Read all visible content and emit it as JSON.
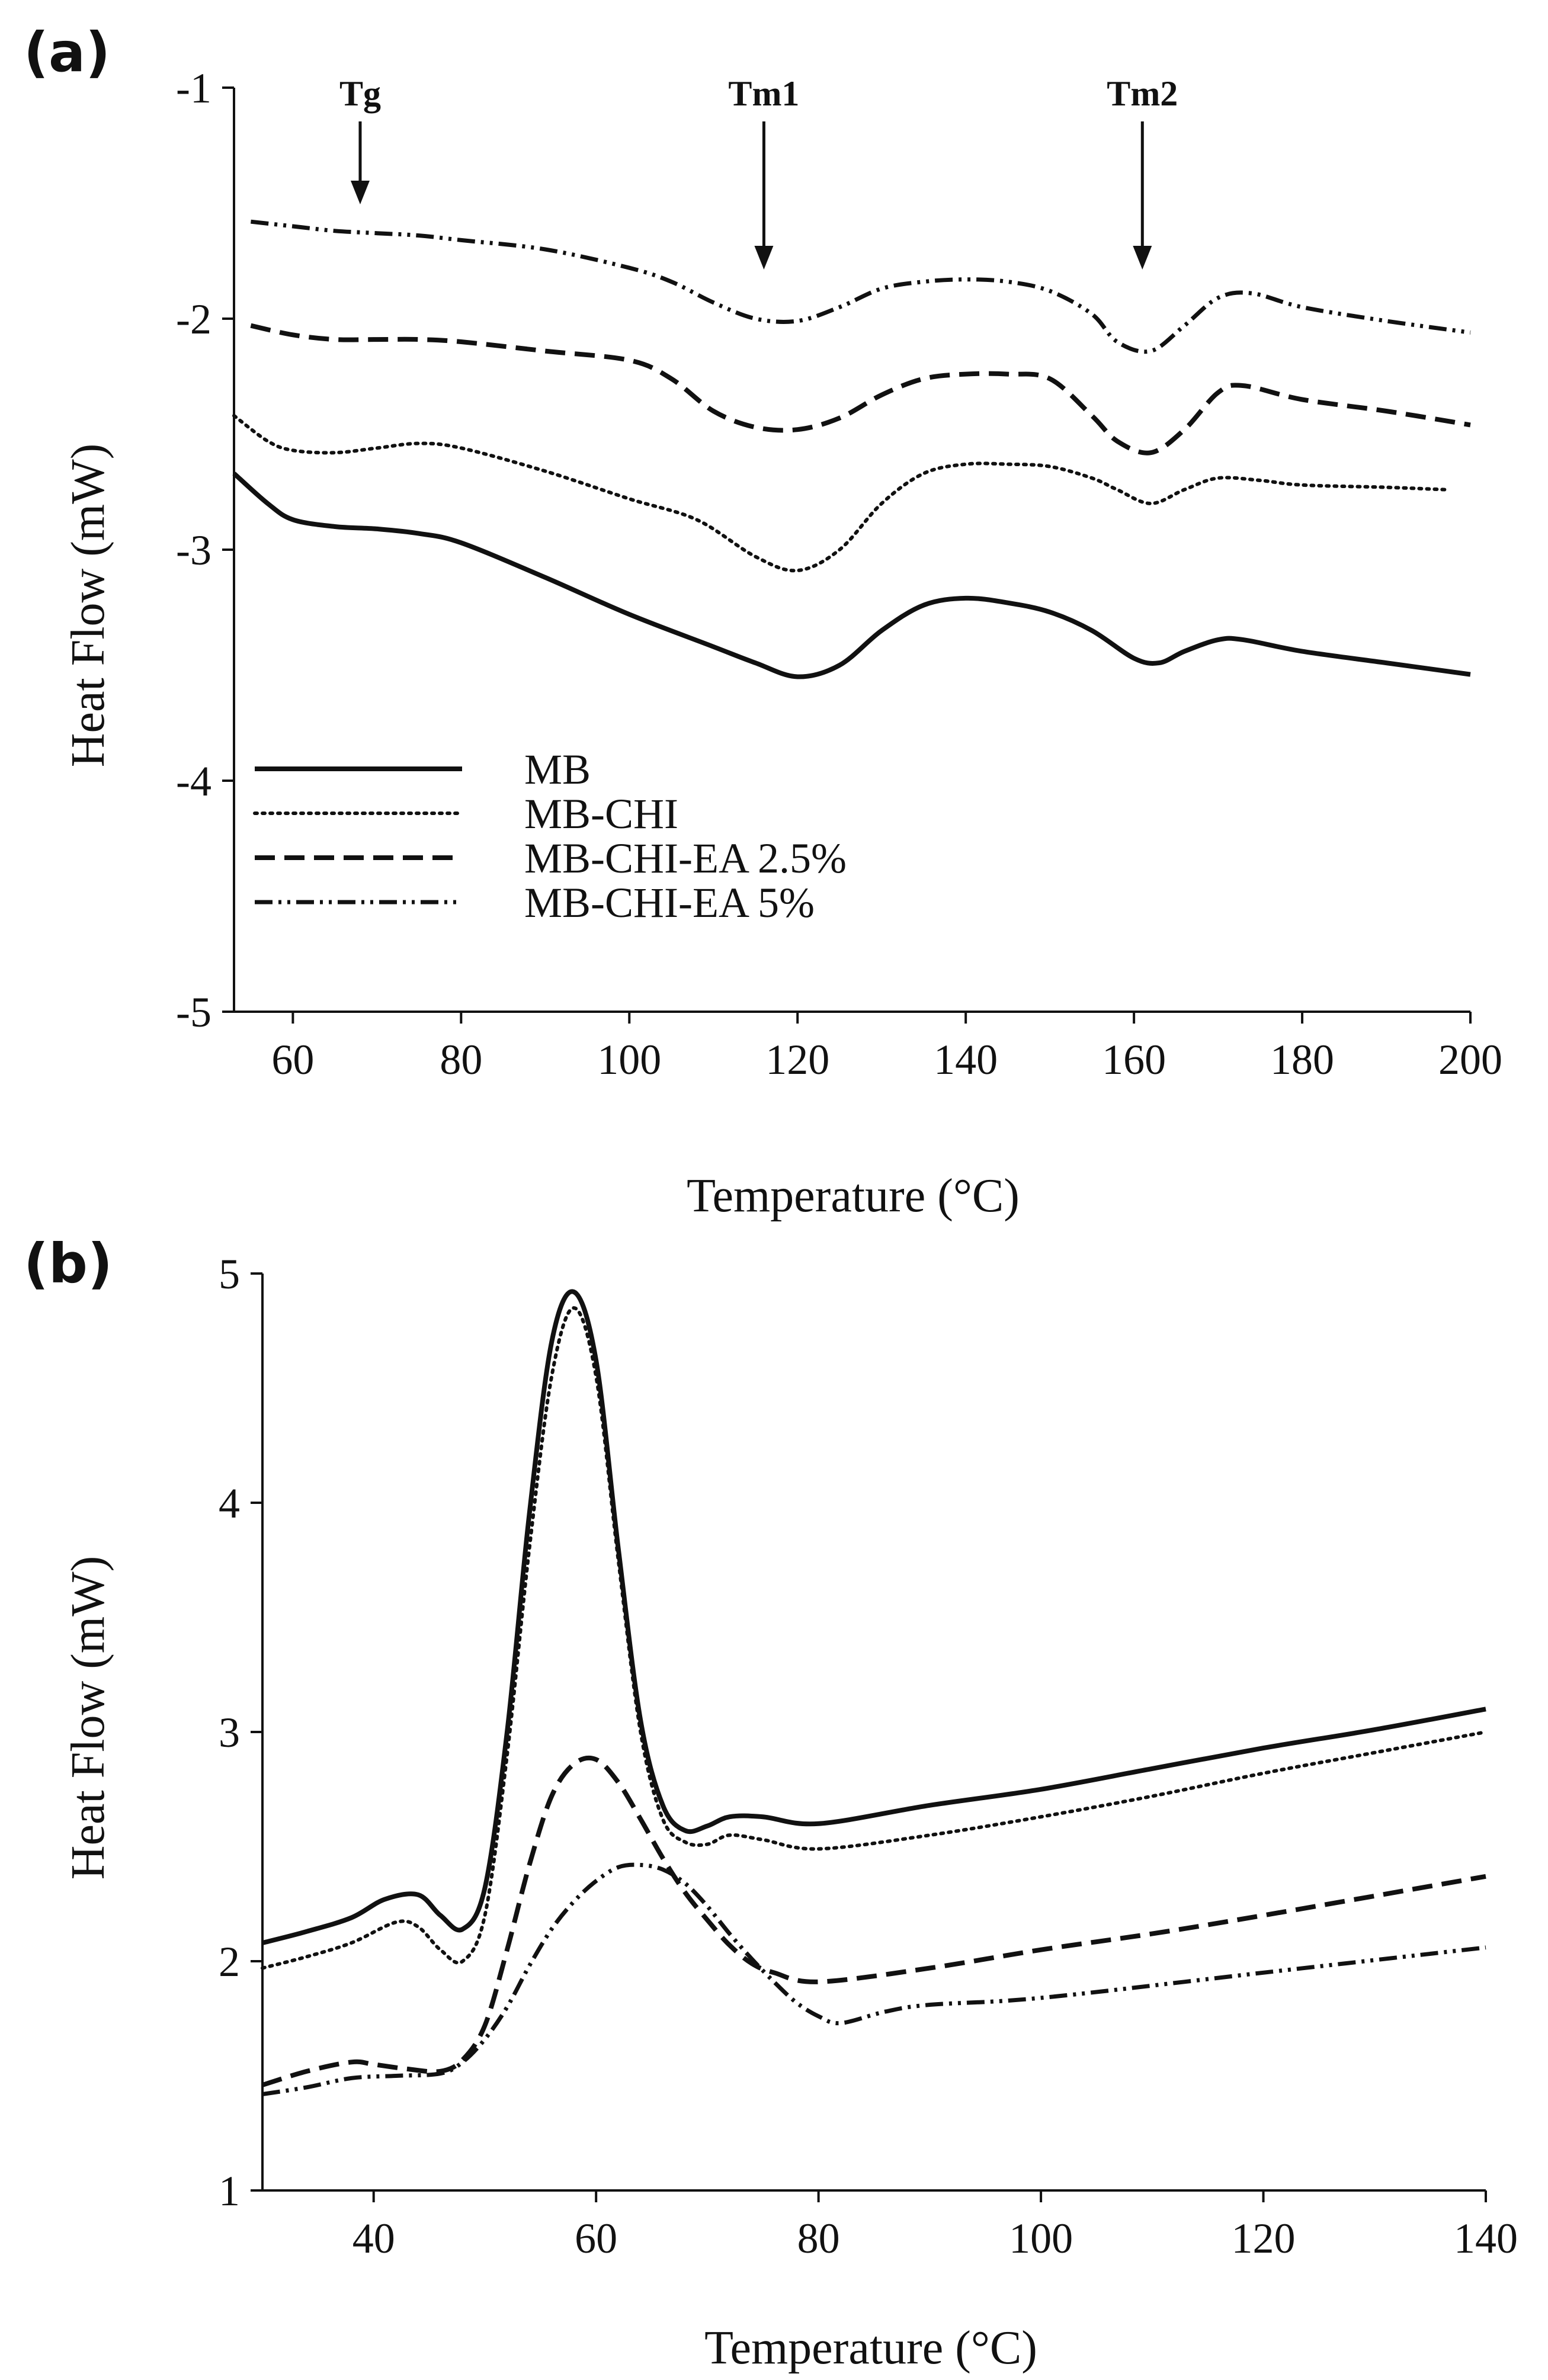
{
  "figure": {
    "panels": [
      "a",
      "b"
    ]
  },
  "chart_data": [
    {
      "id": "a",
      "panel_label": "(a)",
      "type": "line",
      "xlabel": "Temperature (°C)",
      "ylabel": "Heat Flow (mW)",
      "xlim": [
        53,
        200
      ],
      "ylim": [
        -5,
        -1
      ],
      "xticks": [
        60,
        80,
        100,
        120,
        140,
        160,
        180,
        200
      ],
      "yticks": [
        -5,
        -4,
        -3,
        -2,
        -1
      ],
      "legend": {
        "position": "bottom-left"
      },
      "annotations": [
        {
          "label": "Tg",
          "x": 68
        },
        {
          "label": "Tm1",
          "x": 116
        },
        {
          "label": "Tm2",
          "x": 161
        }
      ],
      "series": [
        {
          "name": "MB",
          "style": "solid",
          "x": [
            53,
            57,
            60,
            65,
            70,
            75,
            80,
            90,
            100,
            110,
            115,
            120,
            125,
            130,
            135,
            140,
            145,
            150,
            155,
            160,
            163,
            166,
            170,
            173,
            180,
            190,
            200
          ],
          "y": [
            -2.67,
            -2.8,
            -2.87,
            -2.9,
            -2.91,
            -2.93,
            -2.97,
            -3.12,
            -3.28,
            -3.42,
            -3.49,
            -3.55,
            -3.5,
            -3.35,
            -3.24,
            -3.21,
            -3.23,
            -3.27,
            -3.35,
            -3.47,
            -3.49,
            -3.44,
            -3.39,
            -3.39,
            -3.44,
            -3.49,
            -3.54
          ]
        },
        {
          "name": "MB-CHI",
          "style": "dotted",
          "x": [
            53,
            57,
            60,
            65,
            70,
            75,
            80,
            90,
            100,
            108,
            115,
            120,
            125,
            130,
            135,
            140,
            145,
            150,
            155,
            158,
            162,
            166,
            170,
            175,
            180,
            190,
            197
          ],
          "y": [
            -2.42,
            -2.53,
            -2.57,
            -2.58,
            -2.56,
            -2.54,
            -2.56,
            -2.66,
            -2.78,
            -2.87,
            -3.03,
            -3.09,
            -3.0,
            -2.8,
            -2.67,
            -2.63,
            -2.63,
            -2.64,
            -2.69,
            -2.74,
            -2.8,
            -2.74,
            -2.69,
            -2.7,
            -2.72,
            -2.73,
            -2.74
          ]
        },
        {
          "name": "MB-CHI-EA 2.5%",
          "style": "dashed",
          "x": [
            55,
            60,
            65,
            70,
            75,
            80,
            90,
            100,
            105,
            110,
            115,
            120,
            125,
            130,
            135,
            140,
            145,
            150,
            155,
            158,
            162,
            166,
            170,
            173,
            180,
            190,
            200
          ],
          "y": [
            -2.03,
            -2.07,
            -2.09,
            -2.09,
            -2.09,
            -2.1,
            -2.14,
            -2.18,
            -2.26,
            -2.4,
            -2.47,
            -2.48,
            -2.43,
            -2.33,
            -2.26,
            -2.24,
            -2.24,
            -2.26,
            -2.42,
            -2.53,
            -2.58,
            -2.48,
            -2.32,
            -2.29,
            -2.35,
            -2.4,
            -2.46
          ]
        },
        {
          "name": "MB-CHI-EA 5%",
          "style": "dash-dot-dot",
          "x": [
            55,
            60,
            65,
            70,
            75,
            80,
            90,
            100,
            105,
            110,
            115,
            120,
            125,
            130,
            135,
            140,
            145,
            150,
            155,
            158,
            162,
            166,
            170,
            174,
            180,
            190,
            200
          ],
          "y": [
            -1.58,
            -1.6,
            -1.62,
            -1.63,
            -1.64,
            -1.66,
            -1.7,
            -1.78,
            -1.84,
            -1.93,
            -2.0,
            -2.01,
            -1.95,
            -1.87,
            -1.84,
            -1.83,
            -1.84,
            -1.88,
            -1.98,
            -2.1,
            -2.14,
            -2.03,
            -1.91,
            -1.89,
            -1.95,
            -2.01,
            -2.06
          ]
        }
      ]
    },
    {
      "id": "b",
      "panel_label": "(b)",
      "type": "line",
      "xlabel": "Temperature (°C)",
      "ylabel": "Heat Flow (mW)",
      "xlim": [
        30,
        140
      ],
      "ylim": [
        1,
        5
      ],
      "xticks": [
        40,
        60,
        80,
        100,
        120,
        140
      ],
      "yticks": [
        1,
        2,
        3,
        4,
        5
      ],
      "series": [
        {
          "name": "MB",
          "style": "solid",
          "x": [
            30,
            34,
            38,
            41,
            44,
            46,
            48,
            50,
            52,
            54,
            56,
            58,
            60,
            62,
            64,
            66,
            68,
            70,
            72,
            75,
            80,
            90,
            100,
            110,
            120,
            130,
            140
          ],
          "y": [
            2.08,
            2.13,
            2.19,
            2.27,
            2.29,
            2.2,
            2.14,
            2.32,
            3.0,
            3.95,
            4.7,
            4.92,
            4.62,
            3.8,
            3.05,
            2.68,
            2.57,
            2.59,
            2.63,
            2.63,
            2.6,
            2.68,
            2.75,
            2.84,
            2.93,
            3.01,
            3.1
          ]
        },
        {
          "name": "MB-CHI",
          "style": "dotted",
          "x": [
            30,
            34,
            38,
            42,
            44,
            46,
            48,
            50,
            52,
            54,
            56,
            58,
            60,
            62,
            64,
            66,
            68,
            70,
            72,
            75,
            80,
            90,
            100,
            110,
            120,
            130,
            140
          ],
          "y": [
            1.97,
            2.02,
            2.08,
            2.17,
            2.15,
            2.05,
            2.0,
            2.2,
            2.9,
            3.8,
            4.55,
            4.85,
            4.55,
            3.75,
            3.0,
            2.62,
            2.52,
            2.51,
            2.55,
            2.53,
            2.49,
            2.55,
            2.63,
            2.72,
            2.82,
            2.91,
            3.0
          ]
        },
        {
          "name": "MB-CHI-EA 2.5%",
          "style": "dashed",
          "x": [
            30,
            34,
            38,
            40,
            43,
            46,
            48,
            50,
            52,
            54,
            56,
            58,
            60,
            62,
            64,
            66,
            68,
            70,
            72,
            74,
            76,
            80,
            90,
            100,
            110,
            120,
            140
          ],
          "y": [
            1.46,
            1.52,
            1.56,
            1.55,
            1.53,
            1.52,
            1.57,
            1.72,
            2.05,
            2.42,
            2.72,
            2.86,
            2.88,
            2.78,
            2.62,
            2.45,
            2.3,
            2.18,
            2.07,
            1.99,
            1.95,
            1.91,
            1.97,
            2.05,
            2.12,
            2.2,
            2.37
          ]
        },
        {
          "name": "MB-CHI-EA 5%",
          "style": "dash-dot-dot",
          "x": [
            30,
            34,
            38,
            42,
            46,
            48,
            50,
            52,
            54,
            56,
            58,
            60,
            62,
            64,
            66,
            68,
            70,
            72,
            74,
            76,
            78,
            80,
            82,
            86,
            90,
            100,
            120,
            140
          ],
          "y": [
            1.42,
            1.45,
            1.49,
            1.5,
            1.51,
            1.56,
            1.66,
            1.8,
            1.98,
            2.14,
            2.26,
            2.35,
            2.41,
            2.42,
            2.4,
            2.34,
            2.24,
            2.12,
            2.01,
            1.91,
            1.82,
            1.76,
            1.73,
            1.78,
            1.81,
            1.84,
            1.95,
            2.06
          ]
        }
      ]
    }
  ]
}
